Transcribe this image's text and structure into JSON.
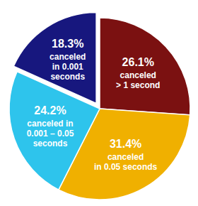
{
  "chart_data": {
    "type": "pie",
    "categories": [
      "canceled\n> 1 second",
      "canceled\nin 0.05 seconds",
      "canceled in\n0.001 – 0.05\nseconds",
      "canceled\nin 0.001\nseconds"
    ],
    "values": [
      26.1,
      31.4,
      24.2,
      18.3
    ],
    "value_labels": [
      "26.1%",
      "31.4%",
      "24.2%",
      "18.3%"
    ],
    "colors": [
      "#7b1111",
      "#f0b000",
      "#2ec4ec",
      "#17177e"
    ],
    "data_labels": true
  }
}
